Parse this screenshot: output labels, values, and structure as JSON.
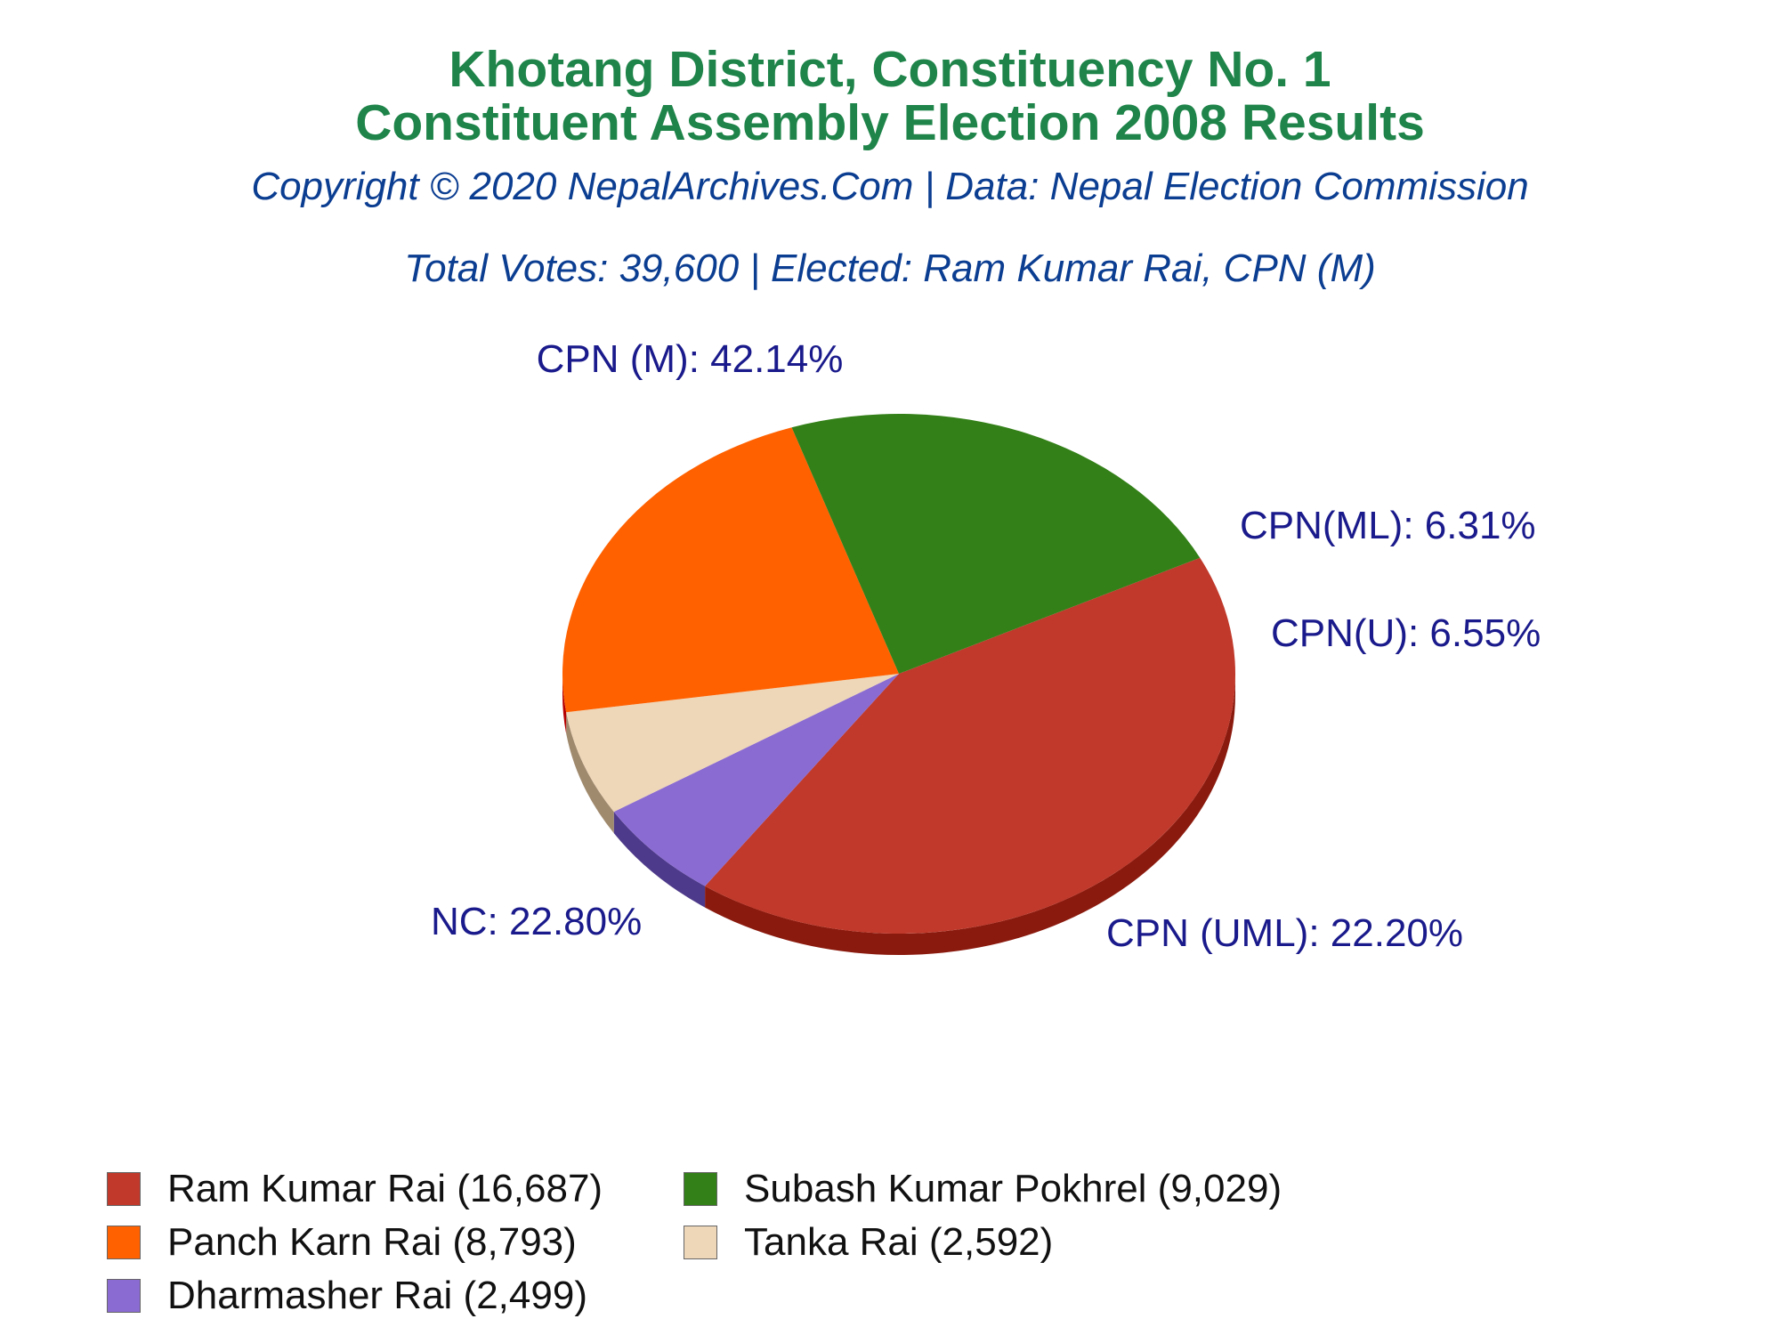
{
  "header": {
    "title_line1": "Khotang District, Constituency No. 1",
    "title_line2": "Constituent Assembly Election 2008 Results",
    "copyright": "Copyright © 2020 NepalArchives.Com | Data: Nepal Election Commission",
    "summary": "Total Votes: 39,600 | Elected: Ram Kumar Rai, CPN (M)"
  },
  "chart_data": {
    "type": "pie",
    "title": "Khotang District, Constituency No. 1 Constituent Assembly Election 2008 Results",
    "total_votes": 39600,
    "slices": [
      {
        "party": "CPN (M)",
        "candidate": "Ram Kumar Rai",
        "votes": 16687,
        "percent": 42.14,
        "label": "CPN (M): 42.14%",
        "legend": "Ram Kumar Rai (16,687)",
        "color": "#c0392b",
        "side_color": "#8b1a0e"
      },
      {
        "party": "CPN(ML)",
        "candidate": "Dharmasher Rai",
        "votes": 2499,
        "percent": 6.31,
        "label": "CPN(ML): 6.31%",
        "legend": "Dharmasher Rai (2,499)",
        "color": "#8a6bd1",
        "side_color": "#4e3a8a"
      },
      {
        "party": "CPN(U)",
        "candidate": "Tanka Rai",
        "votes": 2592,
        "percent": 6.55,
        "label": "CPN(U): 6.55%",
        "legend": "Tanka Rai (2,592)",
        "color": "#eed6b8",
        "side_color": "#a08a6e"
      },
      {
        "party": "CPN (UML)",
        "candidate": "Panch Karn Rai",
        "votes": 8793,
        "percent": 22.2,
        "label": "CPN (UML): 22.20%",
        "legend": "Panch Karn Rai (8,793)",
        "color": "#ff6100",
        "side_color": "#b50000"
      },
      {
        "party": "NC",
        "candidate": "Subash Kumar Pokhrel",
        "votes": 9029,
        "percent": 22.8,
        "label": "NC: 22.80%",
        "legend": "Subash Kumar Pokhrel (9,029)",
        "color": "#338018",
        "side_color": "#0f3300"
      }
    ],
    "legend_order": [
      "Ram Kumar Rai (16,687)",
      "Subash Kumar Pokhrel (9,029)",
      "Panch Karn Rai (8,793)",
      "Tanka Rai (2,592)",
      "Dharmasher Rai (2,499)"
    ],
    "legend_placement": "bottom"
  }
}
